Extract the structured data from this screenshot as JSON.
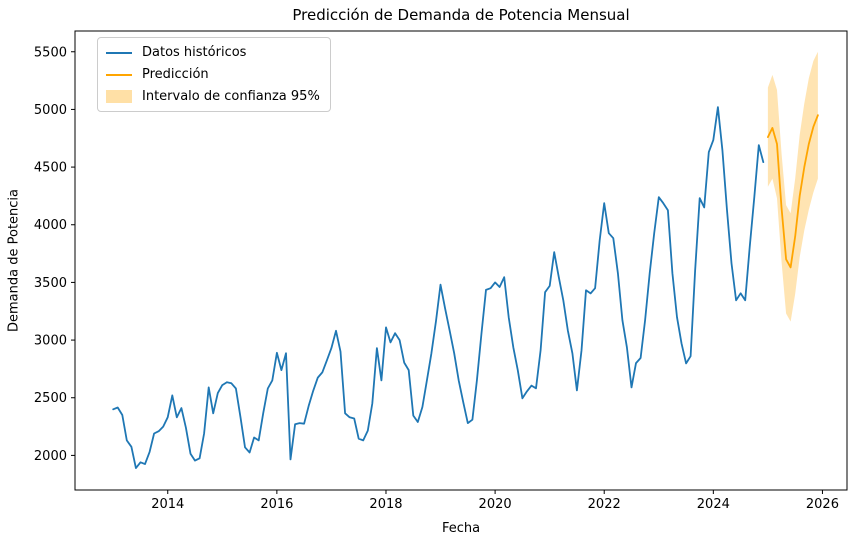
{
  "figure": {
    "title": "Predicción de Demanda de Potencia Mensual",
    "xlabel": "Fecha",
    "ylabel": "Demanda de Potencia"
  },
  "legend": {
    "items": [
      {
        "label": "Datos históricos",
        "type": "line",
        "color": "#1f77b4"
      },
      {
        "label": "Predicción",
        "type": "line",
        "color": "#ffa500"
      },
      {
        "label": "Intervalo de confianza 95%",
        "type": "patch",
        "color": "#ffa500",
        "opacity": 0.35
      }
    ],
    "position": "upper left"
  },
  "chart_data": {
    "type": "line",
    "title": "Predicción de Demanda de Potencia Mensual",
    "xlabel": "Fecha",
    "ylabel": "Demanda de Potencia",
    "grid": false,
    "legend_position": "upper left",
    "xlim": [
      2012.3,
      2026.45
    ],
    "ylim": [
      1700,
      5680
    ],
    "xticks": [
      2014,
      2016,
      2018,
      2020,
      2022,
      2024,
      2026
    ],
    "yticks": [
      2000,
      2500,
      3000,
      3500,
      4000,
      4500,
      5000,
      5500
    ],
    "axis_color": "#000000",
    "series": [
      {
        "name": "Datos históricos",
        "color": "#1f77b4",
        "start_year": 2013,
        "freq": "monthly",
        "values": [
          2400,
          2415,
          2350,
          2130,
          2075,
          1890,
          1940,
          1925,
          2030,
          2190,
          2210,
          2250,
          2330,
          2520,
          2330,
          2410,
          2240,
          2015,
          1955,
          1975,
          2190,
          2590,
          2365,
          2540,
          2610,
          2635,
          2625,
          2580,
          2330,
          2070,
          2025,
          2155,
          2130,
          2365,
          2580,
          2650,
          2890,
          2740,
          2885,
          1965,
          2270,
          2280,
          2275,
          2430,
          2560,
          2675,
          2720,
          2825,
          2930,
          3080,
          2900,
          2365,
          2330,
          2320,
          2145,
          2130,
          2215,
          2450,
          2930,
          2650,
          3110,
          2980,
          3060,
          3000,
          2805,
          2740,
          2345,
          2290,
          2420,
          2650,
          2885,
          3165,
          3480,
          3275,
          3085,
          2885,
          2650,
          2460,
          2280,
          2310,
          2650,
          3060,
          3435,
          3450,
          3500,
          3460,
          3545,
          3198,
          2937,
          2738,
          2495,
          2555,
          2605,
          2582,
          2911,
          3415,
          3470,
          3762,
          3545,
          3345,
          3085,
          2885,
          2564,
          2910,
          3432,
          3405,
          3450,
          3866,
          4187,
          3927,
          3883,
          3580,
          3172,
          2937,
          2590,
          2800,
          2845,
          3172,
          3580,
          3927,
          4239,
          4187,
          4126,
          3580,
          3198,
          2972,
          2798,
          2860,
          3600,
          4230,
          4150,
          4630,
          4734,
          5020,
          4647,
          4126,
          3666,
          3345,
          3406,
          3345,
          3805,
          4239,
          4691,
          4543
        ]
      },
      {
        "name": "Predicción",
        "color": "#ffa500",
        "start_year": 2025,
        "freq": "monthly",
        "values": [
          4760,
          4840,
          4700,
          4150,
          3700,
          3630,
          3900,
          4250,
          4500,
          4700,
          4850,
          4950
        ]
      }
    ],
    "confidence_band": {
      "name": "Intervalo de confianza 95%",
      "fill": "#ffa500",
      "opacity": 0.3,
      "start_year": 2025,
      "freq": "monthly",
      "lower": [
        4330,
        4400,
        4230,
        3680,
        3230,
        3160,
        3400,
        3720,
        3950,
        4130,
        4280,
        4400
      ],
      "upper": [
        5190,
        5300,
        5170,
        4620,
        4170,
        4100,
        4400,
        4780,
        5050,
        5270,
        5420,
        5500
      ]
    }
  }
}
